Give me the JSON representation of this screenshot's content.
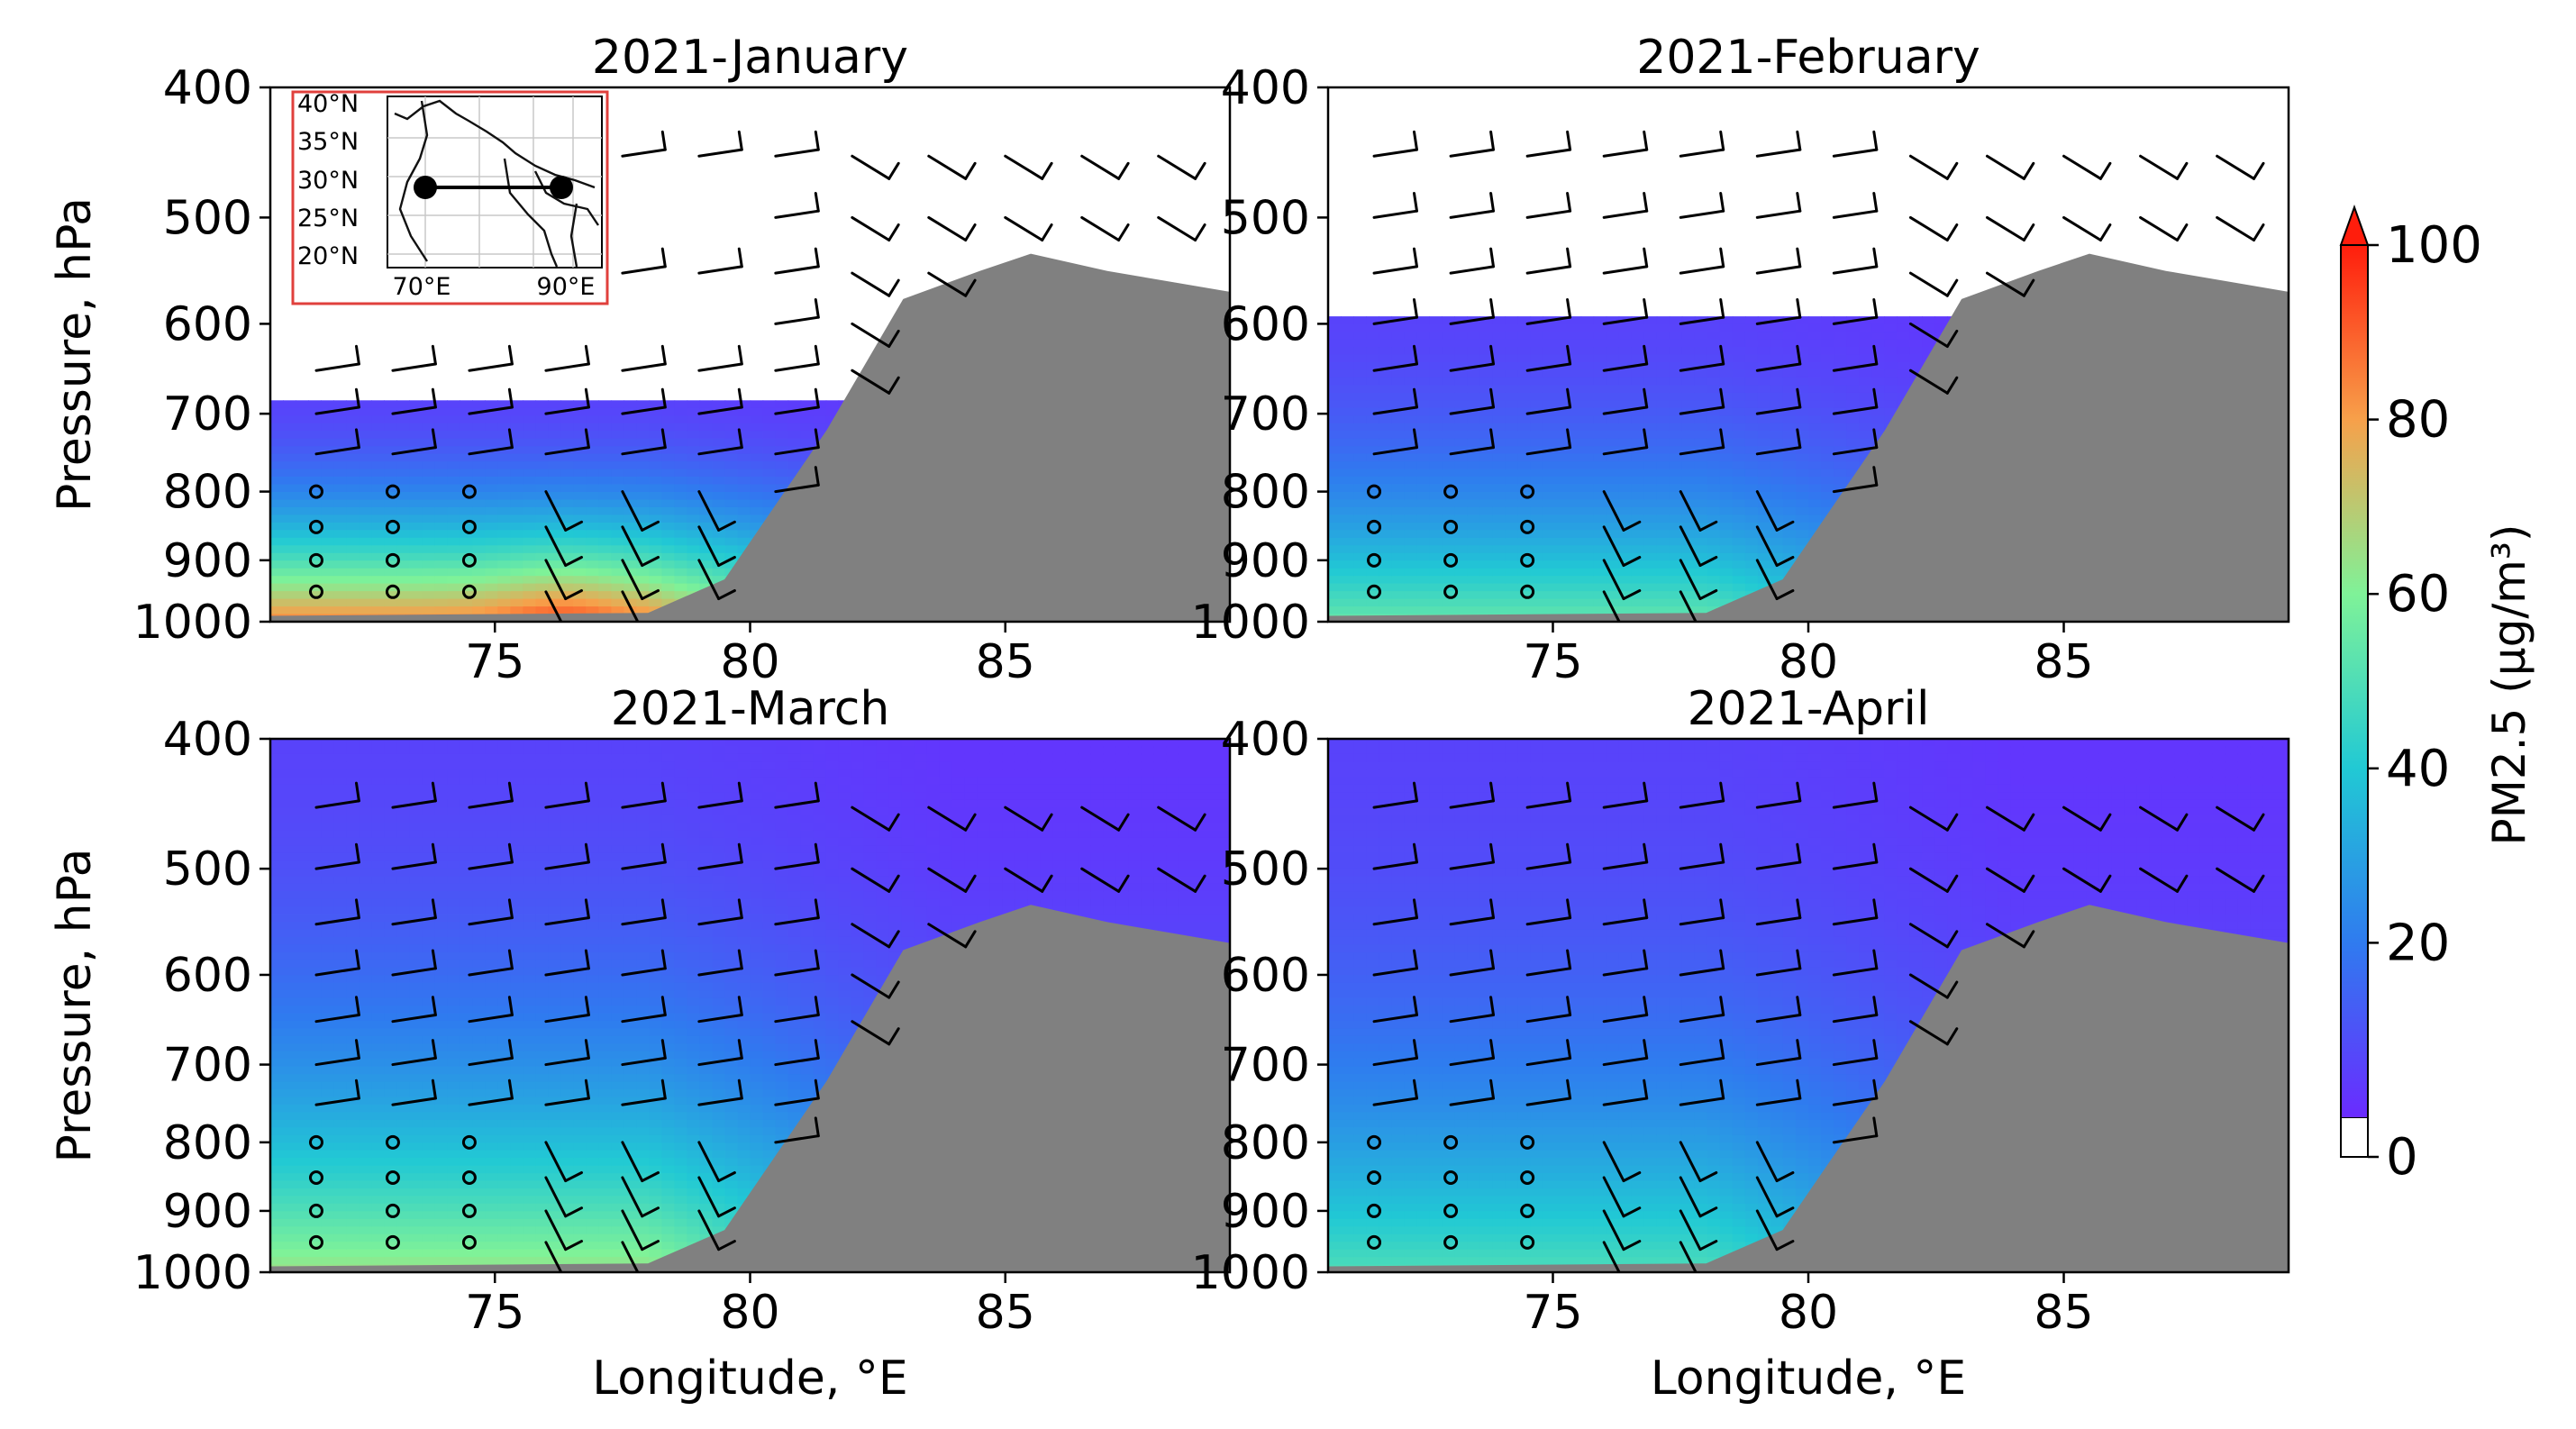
{
  "figure": {
    "colorbar": {
      "label": "PM2.5 (μg/m³)",
      "ticks": [
        "0",
        "20",
        "40",
        "60",
        "80",
        "100"
      ],
      "min": 0,
      "max": 100,
      "extend": "max",
      "colormap": "rainbow"
    },
    "inset": {
      "lat_labels": [
        "40°N",
        "35°N",
        "30°N",
        "25°N",
        "20°N"
      ],
      "lon_labels": [
        "70°E",
        "90°E"
      ],
      "frame_color": "#e0403c",
      "transect_points": [
        {
          "lon": 71,
          "lat": 27.5
        },
        {
          "lon": 89,
          "lat": 27.5
        }
      ]
    },
    "terrain_color": "#808080"
  },
  "chart_data": [
    {
      "type": "heatmap",
      "title": "2021-January",
      "ylabel": "Pressure, hPa",
      "xlabel": "",
      "x_ticks": [
        "75",
        "80",
        "85"
      ],
      "y_ticks": [
        "400",
        "500",
        "600",
        "700",
        "800",
        "900",
        "1000"
      ],
      "xlim": [
        70.6,
        89.4
      ],
      "ylim": [
        1000,
        400
      ],
      "y_scale": "log",
      "pm25_top_hPa": 680,
      "pm25_peak": 85,
      "terrain_surface_hPa": [
        [
          70.6,
          990
        ],
        [
          78,
          985
        ],
        [
          79.5,
          930
        ],
        [
          81.5,
          720
        ],
        [
          83,
          575
        ],
        [
          84.5,
          548
        ],
        [
          85.5,
          532
        ],
        [
          87,
          548
        ],
        [
          89.4,
          568
        ]
      ]
    },
    {
      "type": "heatmap",
      "title": "2021-February",
      "ylabel": "",
      "xlabel": "",
      "x_ticks": [
        "75",
        "80",
        "85"
      ],
      "y_ticks": [
        "400",
        "500",
        "600",
        "700",
        "800",
        "900",
        "1000"
      ],
      "xlim": [
        70.6,
        89.4
      ],
      "ylim": [
        1000,
        400
      ],
      "y_scale": "log",
      "pm25_top_hPa": 590,
      "pm25_peak": 55,
      "terrain_surface_hPa": [
        [
          70.6,
          990
        ],
        [
          78,
          985
        ],
        [
          79.5,
          930
        ],
        [
          81.5,
          720
        ],
        [
          83,
          575
        ],
        [
          84.5,
          548
        ],
        [
          85.5,
          532
        ],
        [
          87,
          548
        ],
        [
          89.4,
          568
        ]
      ]
    },
    {
      "type": "heatmap",
      "title": "2021-March",
      "ylabel": "Pressure, hPa",
      "xlabel": "Longitude, °E",
      "x_ticks": [
        "75",
        "80",
        "85"
      ],
      "y_ticks": [
        "400",
        "500",
        "600",
        "700",
        "800",
        "900",
        "1000"
      ],
      "xlim": [
        70.6,
        89.4
      ],
      "ylim": [
        1000,
        400
      ],
      "y_scale": "log",
      "pm25_top_hPa": 400,
      "pm25_peak": 65,
      "terrain_surface_hPa": [
        [
          70.6,
          990
        ],
        [
          78,
          985
        ],
        [
          79.5,
          930
        ],
        [
          81.5,
          720
        ],
        [
          83,
          575
        ],
        [
          84.5,
          548
        ],
        [
          85.5,
          532
        ],
        [
          87,
          548
        ],
        [
          89.4,
          568
        ]
      ]
    },
    {
      "type": "heatmap",
      "title": "2021-April",
      "ylabel": "",
      "xlabel": "Longitude, °E",
      "x_ticks": [
        "75",
        "80",
        "85"
      ],
      "y_ticks": [
        "400",
        "500",
        "600",
        "700",
        "800",
        "900",
        "1000"
      ],
      "xlim": [
        70.6,
        89.4
      ],
      "ylim": [
        1000,
        400
      ],
      "y_scale": "log",
      "pm25_top_hPa": 400,
      "pm25_peak": 50,
      "terrain_surface_hPa": [
        [
          70.6,
          990
        ],
        [
          78,
          985
        ],
        [
          79.5,
          930
        ],
        [
          81.5,
          720
        ],
        [
          83,
          575
        ],
        [
          84.5,
          548
        ],
        [
          85.5,
          532
        ],
        [
          87,
          548
        ],
        [
          89.4,
          568
        ]
      ]
    }
  ]
}
